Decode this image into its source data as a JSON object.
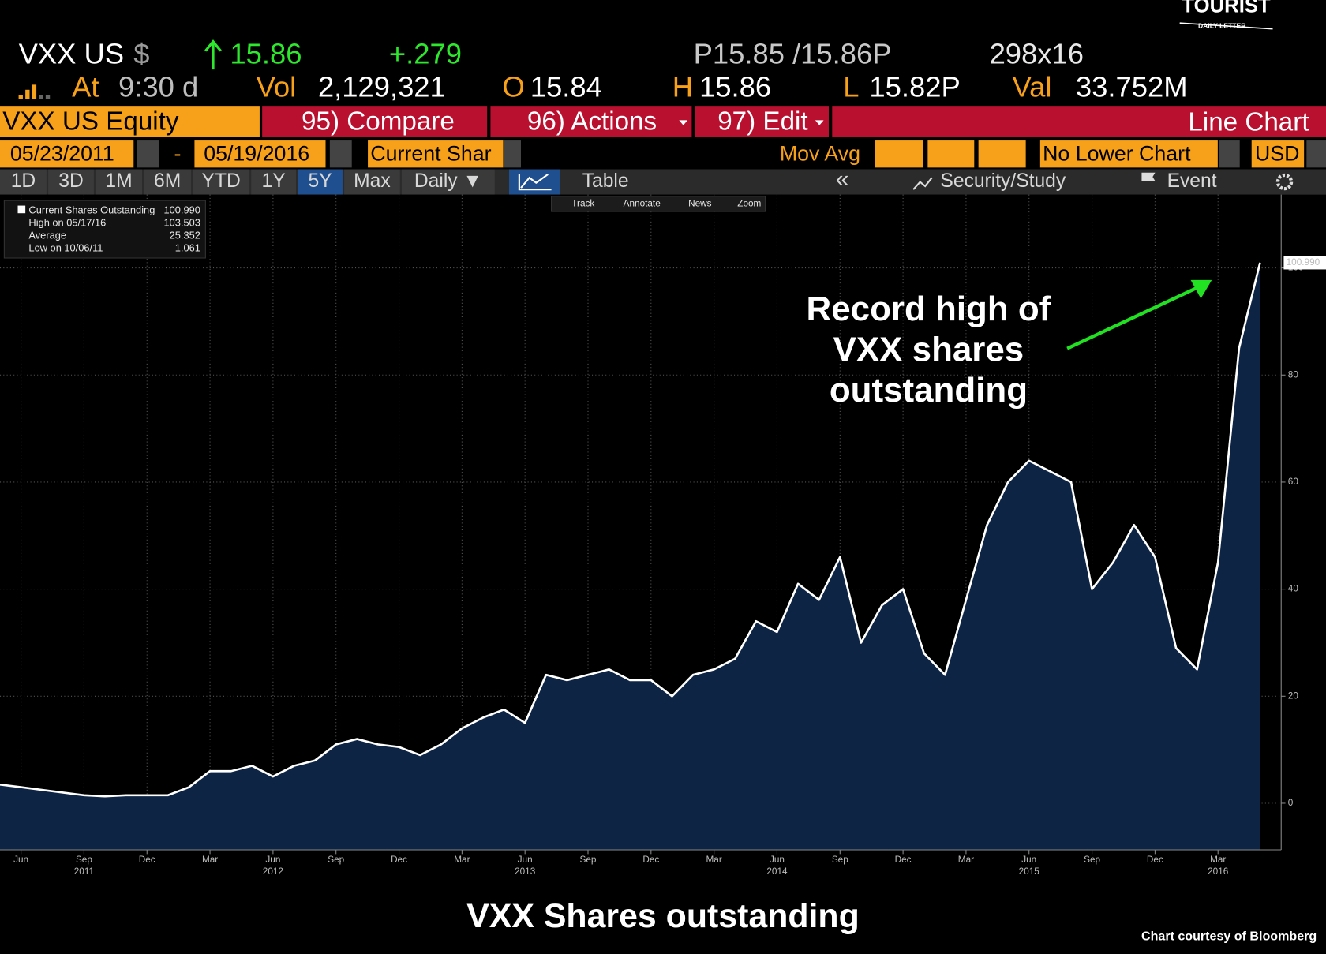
{
  "header": {
    "ticker": "VXX US",
    "currency": "$",
    "last": "15.86",
    "change": "+.279",
    "bid_ask": "P15.85 /15.86P",
    "size": "298x16",
    "at_label": "At",
    "time": "9:30 d",
    "vol_label": "Vol",
    "vol": "2,129,321",
    "open_label": "O",
    "open": "15.84",
    "high_label": "H",
    "high": "15.86",
    "low_label": "L",
    "low": "15.82P",
    "val_label": "Val",
    "val": "33.752M"
  },
  "toolbar": {
    "security": "VXX US Equity",
    "compare": "95) Compare",
    "actions": "96) Actions",
    "edit": "97) Edit",
    "chart_type": "Line Chart"
  },
  "range": {
    "start": "05/23/2011",
    "dash": "-",
    "end": "05/19/2016",
    "field": "Current Shar",
    "mov_avg": "Mov Avg",
    "lower": "No Lower Chart",
    "currency": "USD"
  },
  "tabs": [
    "1D",
    "3D",
    "1M",
    "6M",
    "YTD",
    "1Y",
    "5Y",
    "Max",
    "Daily ▼"
  ],
  "view": {
    "table": "Table",
    "back": "«",
    "security_study": "Security/Study",
    "event": "Event"
  },
  "tools": [
    "Track",
    "Annotate",
    "News",
    "Zoom"
  ],
  "logo": {
    "name": "TOURIST",
    "sub": "DAILY LETTER"
  },
  "caption": "VXX Shares outstanding",
  "credit": "Chart courtesy of Bloomberg",
  "chart_data": {
    "type": "area",
    "stats": [
      {
        "label": "Current Shares Outstanding",
        "value_label": "100.990"
      },
      {
        "label": "High on 05/17/16",
        "value_label": "103.503"
      },
      {
        "label": "Average",
        "value_label": "25.352"
      },
      {
        "label": "Low on 10/06/11",
        "value_label": "1.061"
      }
    ],
    "annotation": [
      "Record high of",
      "VXX shares",
      "outstanding"
    ],
    "x": [
      "2011-05",
      "2011-06",
      "2011-07",
      "2011-08",
      "2011-09",
      "2011-10",
      "2011-11",
      "2011-12",
      "2012-01",
      "2012-02",
      "2012-03",
      "2012-04",
      "2012-05",
      "2012-06",
      "2012-07",
      "2012-08",
      "2012-09",
      "2012-10",
      "2012-11",
      "2012-12",
      "2013-01",
      "2013-02",
      "2013-03",
      "2013-04",
      "2013-05",
      "2013-06",
      "2013-07",
      "2013-08",
      "2013-09",
      "2013-10",
      "2013-11",
      "2013-12",
      "2014-01",
      "2014-02",
      "2014-03",
      "2014-04",
      "2014-05",
      "2014-06",
      "2014-07",
      "2014-08",
      "2014-09",
      "2014-10",
      "2014-11",
      "2014-12",
      "2015-01",
      "2015-02",
      "2015-03",
      "2015-04",
      "2015-05",
      "2015-06",
      "2015-07",
      "2015-08",
      "2015-09",
      "2015-10",
      "2015-11",
      "2015-12",
      "2016-01",
      "2016-02",
      "2016-03",
      "2016-04",
      "2016-05"
    ],
    "values": [
      3.5,
      3,
      2.5,
      2,
      1.5,
      1.3,
      1.5,
      1.5,
      1.5,
      3,
      6,
      6,
      7,
      5,
      7,
      8,
      11,
      12,
      11,
      10.5,
      9,
      11,
      14,
      16,
      17.5,
      15,
      24,
      23,
      24,
      25,
      23,
      23,
      20,
      24,
      25,
      27,
      34,
      32,
      41,
      38,
      46,
      30,
      37,
      40,
      28,
      24,
      38,
      52,
      60,
      64,
      62,
      60,
      40,
      45,
      52,
      46,
      29,
      25,
      45,
      85,
      100.99
    ],
    "color": "#0d2445",
    "line_color": "#ffffff",
    "xlim": [
      "2011-05",
      "2016-05"
    ],
    "ylim": [
      -8.7,
      113.7
    ],
    "yticks": [
      0,
      20,
      40,
      60,
      80,
      100
    ],
    "xticks": [
      {
        "value": "2011-06",
        "label": "Jun"
      },
      {
        "value": "2011-09",
        "label": "Sep"
      },
      {
        "value": "2011-12",
        "label": "Dec"
      },
      {
        "value": "2012-03",
        "label": "Mar"
      },
      {
        "value": "2012-06",
        "label": "Jun"
      },
      {
        "value": "2012-09",
        "label": "Sep"
      },
      {
        "value": "2012-12",
        "label": "Dec"
      },
      {
        "value": "2013-03",
        "label": "Mar"
      },
      {
        "value": "2013-06",
        "label": "Jun"
      },
      {
        "value": "2013-09",
        "label": "Sep"
      },
      {
        "value": "2013-12",
        "label": "Dec"
      },
      {
        "value": "2014-03",
        "label": "Mar"
      },
      {
        "value": "2014-06",
        "label": "Jun"
      },
      {
        "value": "2014-09",
        "label": "Sep"
      },
      {
        "value": "2014-12",
        "label": "Dec"
      },
      {
        "value": "2015-03",
        "label": "Mar"
      },
      {
        "value": "2015-06",
        "label": "Jun"
      },
      {
        "value": "2015-09",
        "label": "Sep"
      },
      {
        "value": "2015-12",
        "label": "Dec"
      },
      {
        "value": "2016-03",
        "label": "Mar"
      }
    ],
    "year_labels": [
      {
        "value": "2011-09",
        "label": "2011"
      },
      {
        "value": "2012-06",
        "label": "2012"
      },
      {
        "value": "2013-06",
        "label": "2013"
      },
      {
        "value": "2014-06",
        "label": "2014"
      },
      {
        "value": "2015-06",
        "label": "2015"
      },
      {
        "value": "2016-03",
        "label": "2016"
      }
    ],
    "grid": true
  }
}
